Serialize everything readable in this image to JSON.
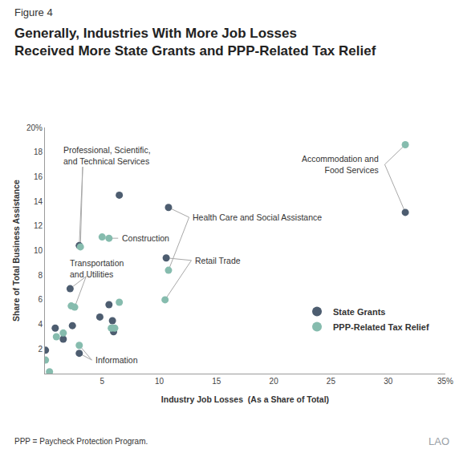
{
  "chart_data": {
    "type": "scatter",
    "figure_label": "Figure 4",
    "title": "Generally, Industries With More Job Losses\nReceived More State Grants and PPP-Related Tax Relief",
    "x_label": "Industry Job Losses  (As a Share of Total)",
    "y_label": "Share of Total Business Assistance",
    "note": "PPP = Paycheck Protection Program.",
    "logo": "LAO",
    "xlim": [
      0,
      35
    ],
    "xticks": [
      5,
      10,
      15,
      20,
      25,
      30,
      {
        "value": 35,
        "label": "35%"
      }
    ],
    "ylim": [
      0,
      20
    ],
    "yticks": [
      2,
      4,
      6,
      8,
      10,
      12,
      14,
      16,
      18,
      {
        "value": 20,
        "label": "20%"
      }
    ],
    "grid": false,
    "legend": "lower right",
    "marker": "circle",
    "series": [
      {
        "name": "State Grants",
        "color": "#4d5d70",
        "x": [
          0.05,
          0.9,
          1.6,
          2.2,
          2.4,
          3.0,
          3.0,
          4.8,
          5.6,
          5.9,
          6.0,
          6.5,
          10.6,
          10.8,
          31.5
        ],
        "values": [
          1.9,
          3.7,
          2.8,
          6.9,
          3.9,
          1.65,
          10.4,
          4.6,
          5.6,
          4.3,
          3.4,
          14.5,
          9.4,
          13.5,
          13.1
        ],
        "labels": [
          null,
          null,
          null,
          "Transportation\nand Utilities",
          null,
          "Information",
          "Professional, Scientific,\nand Technical Services",
          null,
          null,
          null,
          null,
          null,
          "Retail Trade",
          "Health Care and Social Assistance",
          "Accommodation and\nFood Services"
        ]
      },
      {
        "name": "PPP-Related Tax Relief",
        "color": "#86bcae",
        "x": [
          0.05,
          0.4,
          1.0,
          1.6,
          2.3,
          2.6,
          3.0,
          3.1,
          5.0,
          5.6,
          5.8,
          6.1,
          6.5,
          10.5,
          10.8,
          31.5
        ],
        "values": [
          1.1,
          0.15,
          3.0,
          3.3,
          5.5,
          5.4,
          2.3,
          10.3,
          11.1,
          11.0,
          3.7,
          3.7,
          5.8,
          6.0,
          8.4,
          18.6
        ],
        "labels": [
          null,
          null,
          null,
          null,
          null,
          "Transportation\nand Utilities",
          "Information",
          "Professional, Scientific,\nand Technical Services",
          null,
          "Construction",
          null,
          null,
          null,
          "Retail Trade",
          "Health Care and Social Assistance",
          "Accommodation and\nFood Services"
        ]
      }
    ]
  }
}
